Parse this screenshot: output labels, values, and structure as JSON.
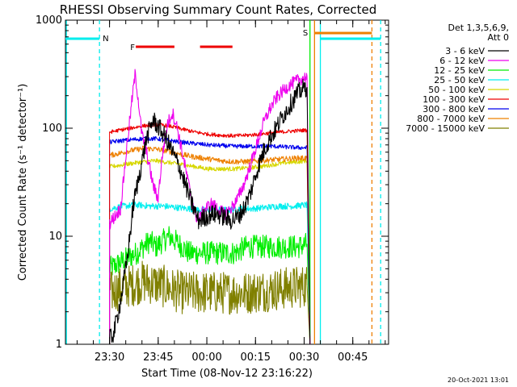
{
  "chart_data": {
    "type": "line",
    "title": "RHESSI Observing Summary Count Rates, Corrected",
    "xlabel": "Start Time (08-Nov-12 23:16:22)",
    "ylabel": "Corrected Count Rate (s⁻¹ detector⁻¹)",
    "yscale": "log",
    "ylim": [
      1,
      1000
    ],
    "xlim": [
      "23:16:22",
      "00:56:00"
    ],
    "x_tick_labels": [
      "23:30",
      "23:45",
      "00:00",
      "00:15",
      "00:30",
      "00:45"
    ],
    "x_tick_minutes": [
      13.6,
      28.6,
      43.6,
      58.6,
      73.6,
      88.6
    ],
    "y_tick_labels": [
      "1",
      "10",
      "100",
      "1000"
    ],
    "y_tick_values": [
      1,
      10,
      100,
      1000
    ],
    "grid": false,
    "legend_header": [
      "Det 1,3,5,6,9,",
      "Att 0"
    ],
    "legend_placement": "right",
    "footer_date": "20-Oct-2021 13:01",
    "data_start_minute": 13.6,
    "data_end_minute": 75.4,
    "series": [
      {
        "name": "3 - 6 keV",
        "color": "#000000",
        "noise": 0.18,
        "points": [
          [
            13.6,
            1.1
          ],
          [
            15,
            1.3
          ],
          [
            17,
            2.5
          ],
          [
            19,
            6
          ],
          [
            21,
            20
          ],
          [
            23,
            40
          ],
          [
            25,
            80
          ],
          [
            27,
            120
          ],
          [
            29,
            100
          ],
          [
            31,
            80
          ],
          [
            33,
            60
          ],
          [
            35,
            45
          ],
          [
            37,
            30
          ],
          [
            39,
            20
          ],
          [
            41,
            14
          ],
          [
            43,
            15
          ],
          [
            45,
            16
          ],
          [
            47,
            16
          ],
          [
            49,
            15
          ],
          [
            51,
            14
          ],
          [
            53,
            15
          ],
          [
            55,
            18
          ],
          [
            57,
            25
          ],
          [
            59,
            40
          ],
          [
            61,
            60
          ],
          [
            63,
            80
          ],
          [
            65,
            100
          ],
          [
            67,
            130
          ],
          [
            69,
            160
          ],
          [
            71,
            200
          ],
          [
            73,
            230
          ],
          [
            74.5,
            240
          ]
        ]
      },
      {
        "name": "6 - 12 keV",
        "color": "#ee00ee",
        "noise": 0.12,
        "points": [
          [
            13.6,
            13
          ],
          [
            15,
            15
          ],
          [
            17,
            18
          ],
          [
            19,
            70
          ],
          [
            20.5,
            180
          ],
          [
            21.5,
            320
          ],
          [
            22.5,
            180
          ],
          [
            23.5,
            90
          ],
          [
            25,
            60
          ],
          [
            27,
            30
          ],
          [
            28.5,
            22
          ],
          [
            30,
            60
          ],
          [
            31.5,
            110
          ],
          [
            33,
            140
          ],
          [
            34.5,
            100
          ],
          [
            36,
            60
          ],
          [
            38,
            30
          ],
          [
            40,
            16
          ],
          [
            41,
            14
          ],
          [
            43,
            18
          ],
          [
            45,
            20
          ],
          [
            47,
            18
          ],
          [
            49,
            16
          ],
          [
            51,
            18
          ],
          [
            53,
            22
          ],
          [
            55,
            30
          ],
          [
            57,
            45
          ],
          [
            59,
            70
          ],
          [
            61,
            110
          ],
          [
            63,
            150
          ],
          [
            65,
            190
          ],
          [
            67,
            220
          ],
          [
            69,
            250
          ],
          [
            71,
            270
          ],
          [
            73,
            290
          ],
          [
            74.5,
            300
          ]
        ]
      },
      {
        "name": "12 - 25 keV",
        "color": "#00ee00",
        "noise": 0.22,
        "points": [
          [
            13.6,
            5
          ],
          [
            16,
            5.5
          ],
          [
            18,
            6
          ],
          [
            20,
            6.5
          ],
          [
            22,
            7
          ],
          [
            24,
            8
          ],
          [
            26,
            9
          ],
          [
            28,
            8
          ],
          [
            30,
            9
          ],
          [
            32,
            10
          ],
          [
            34,
            9
          ],
          [
            36,
            8
          ],
          [
            38,
            7
          ],
          [
            40,
            7
          ],
          [
            44,
            7
          ],
          [
            48,
            7
          ],
          [
            52,
            7
          ],
          [
            56,
            8
          ],
          [
            60,
            8
          ],
          [
            64,
            8
          ],
          [
            68,
            8
          ],
          [
            72,
            8
          ],
          [
            74.5,
            8.5
          ]
        ]
      },
      {
        "name": "25 - 50 keV",
        "color": "#00eeee",
        "noise": 0.06,
        "points": [
          [
            13.6,
            18
          ],
          [
            16,
            18.5
          ],
          [
            18,
            19
          ],
          [
            22,
            19.5
          ],
          [
            26,
            19
          ],
          [
            30,
            19
          ],
          [
            34,
            18.5
          ],
          [
            38,
            18
          ],
          [
            42,
            17.5
          ],
          [
            46,
            17.5
          ],
          [
            50,
            17.5
          ],
          [
            54,
            18
          ],
          [
            58,
            18
          ],
          [
            62,
            18.5
          ],
          [
            66,
            19
          ],
          [
            70,
            19
          ],
          [
            74.5,
            19.5
          ]
        ]
      },
      {
        "name": "50 - 100 keV",
        "color": "#d7d700",
        "noise": 0.04,
        "points": [
          [
            13.6,
            44
          ],
          [
            16,
            45
          ],
          [
            20,
            47
          ],
          [
            24,
            49
          ],
          [
            28,
            50
          ],
          [
            32,
            48
          ],
          [
            36,
            46
          ],
          [
            40,
            44
          ],
          [
            44,
            42
          ],
          [
            48,
            42
          ],
          [
            52,
            42
          ],
          [
            56,
            43
          ],
          [
            60,
            44
          ],
          [
            64,
            46
          ],
          [
            68,
            48
          ],
          [
            72,
            49
          ],
          [
            74.5,
            50
          ]
        ]
      },
      {
        "name": "100 - 300 keV",
        "color": "#ee0000",
        "noise": 0.035,
        "points": [
          [
            13.6,
            92
          ],
          [
            16,
            95
          ],
          [
            20,
            100
          ],
          [
            24,
            105
          ],
          [
            28,
            108
          ],
          [
            32,
            105
          ],
          [
            36,
            98
          ],
          [
            40,
            92
          ],
          [
            44,
            88
          ],
          [
            48,
            86
          ],
          [
            52,
            85
          ],
          [
            56,
            86
          ],
          [
            60,
            88
          ],
          [
            64,
            91
          ],
          [
            68,
            93
          ],
          [
            72,
            95
          ],
          [
            74.5,
            96
          ]
        ]
      },
      {
        "name": "300 - 800 keV",
        "color": "#0000ee",
        "noise": 0.04,
        "points": [
          [
            13.6,
            74
          ],
          [
            16,
            76
          ],
          [
            20,
            78
          ],
          [
            24,
            80
          ],
          [
            28,
            80
          ],
          [
            32,
            77
          ],
          [
            36,
            74
          ],
          [
            40,
            72
          ],
          [
            44,
            70
          ],
          [
            48,
            69
          ],
          [
            52,
            68
          ],
          [
            56,
            68
          ],
          [
            60,
            68
          ],
          [
            64,
            68
          ],
          [
            68,
            67
          ],
          [
            72,
            66
          ],
          [
            74.5,
            66
          ]
        ]
      },
      {
        "name": "800 - 7000 keV",
        "color": "#ee8000",
        "noise": 0.05,
        "points": [
          [
            13.6,
            56
          ],
          [
            16,
            58
          ],
          [
            20,
            62
          ],
          [
            24,
            65
          ],
          [
            28,
            64
          ],
          [
            32,
            61
          ],
          [
            36,
            57
          ],
          [
            40,
            54
          ],
          [
            44,
            52
          ],
          [
            48,
            50
          ],
          [
            52,
            49
          ],
          [
            56,
            49
          ],
          [
            60,
            50
          ],
          [
            64,
            51
          ],
          [
            68,
            52
          ],
          [
            72,
            53
          ],
          [
            74.5,
            53
          ]
        ]
      },
      {
        "name": "7000 - 15000 keV",
        "color": "#808000",
        "noise": 0.4,
        "points": [
          [
            13.6,
            3
          ],
          [
            16,
            3.2
          ],
          [
            20,
            3.5
          ],
          [
            24,
            3.8
          ],
          [
            28,
            3.6
          ],
          [
            32,
            3.3
          ],
          [
            36,
            3
          ],
          [
            40,
            3
          ],
          [
            44,
            3
          ],
          [
            48,
            3
          ],
          [
            52,
            3
          ],
          [
            56,
            3
          ],
          [
            60,
            3.1
          ],
          [
            64,
            3.2
          ],
          [
            68,
            3.3
          ],
          [
            72,
            3.4
          ],
          [
            74.5,
            3.5
          ]
        ]
      }
    ],
    "flags": {
      "N_label": "N",
      "F_label": "F",
      "S_label": "S",
      "night_intervals": [
        [
          0,
          10.5
        ],
        [
          78.6,
          97.2
        ]
      ],
      "night_color": "#00eeee",
      "flare_intervals": [
        [
          21.7,
          33.6
        ],
        [
          41.5,
          51.5
        ]
      ],
      "flare_color": "#ee0000",
      "saa_interval": [
        76.8,
        94.5
      ],
      "saa_color": "#ee8000",
      "vertical_lines": [
        {
          "minute": 0.3,
          "color": "#00eeee",
          "style": "solid"
        },
        {
          "minute": 10.5,
          "color": "#00eeee",
          "style": "dashed"
        },
        {
          "minute": 75.4,
          "color": "#00ee00",
          "style": "solid"
        },
        {
          "minute": 76.8,
          "color": "#ee8000",
          "style": "solid"
        },
        {
          "minute": 78.6,
          "color": "#00eeee",
          "style": "solid"
        },
        {
          "minute": 94.5,
          "color": "#ee8000",
          "style": "dashed"
        },
        {
          "minute": 97.2,
          "color": "#00eeee",
          "style": "dashed"
        }
      ]
    }
  }
}
